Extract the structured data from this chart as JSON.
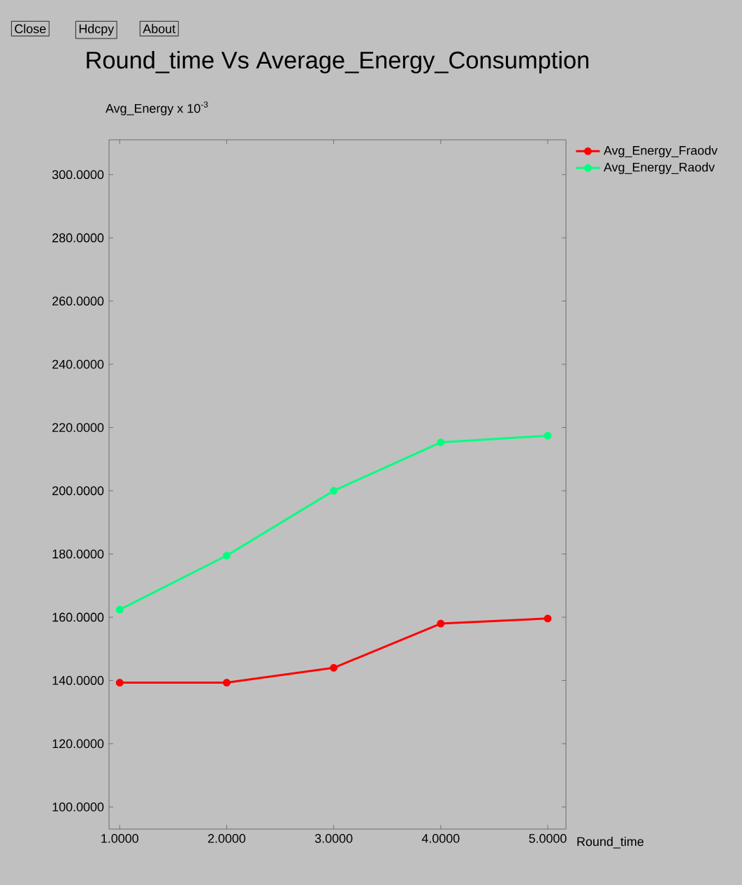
{
  "chart_data": {
    "type": "line",
    "title": "Round_time Vs Average_Energy_Consumption",
    "xlabel": "Round_time",
    "ylabel": "Avg_Energy x 10$^{-3}$",
    "x": [
      1,
      2,
      3,
      4,
      5
    ],
    "series": [
      {
        "name": "Avg_Energy_Fraodv",
        "color": "#ff0000",
        "values": [
          139.3,
          139.3,
          144,
          158,
          159.6
        ]
      },
      {
        "name": "Avg_Energy_Raodv",
        "color": "#00ff7f",
        "values": [
          162.4,
          179.5,
          200,
          215.3,
          217.4
        ]
      }
    ],
    "xlim": [
      0.9,
      5.17
    ],
    "ylim": [
      93,
      311
    ],
    "xticks": [
      {
        "value": 1,
        "label": "1.0000"
      },
      {
        "value": 2,
        "label": "2.0000"
      },
      {
        "value": 3,
        "label": "3.0000"
      },
      {
        "value": 4,
        "label": "4.0000"
      },
      {
        "value": 5,
        "label": "5.0000"
      }
    ],
    "yticks": [
      {
        "value": 100,
        "label": "100.0000"
      },
      {
        "value": 120,
        "label": "120.0000"
      },
      {
        "value": 140,
        "label": "140.0000"
      },
      {
        "value": 160,
        "label": "160.0000"
      },
      {
        "value": 180,
        "label": "180.0000"
      },
      {
        "value": 200,
        "label": "200.0000"
      },
      {
        "value": 220,
        "label": "220.0000"
      },
      {
        "value": 240,
        "label": "240.0000"
      },
      {
        "value": 260,
        "label": "260.0000"
      },
      {
        "value": 280,
        "label": "280.0000"
      },
      {
        "value": 300,
        "label": "300.0000"
      }
    ],
    "annotations": [
      "Close",
      "Hdcpy",
      "About"
    ],
    "legend": "top right",
    "marker": "circle",
    "line_style": "solid"
  }
}
